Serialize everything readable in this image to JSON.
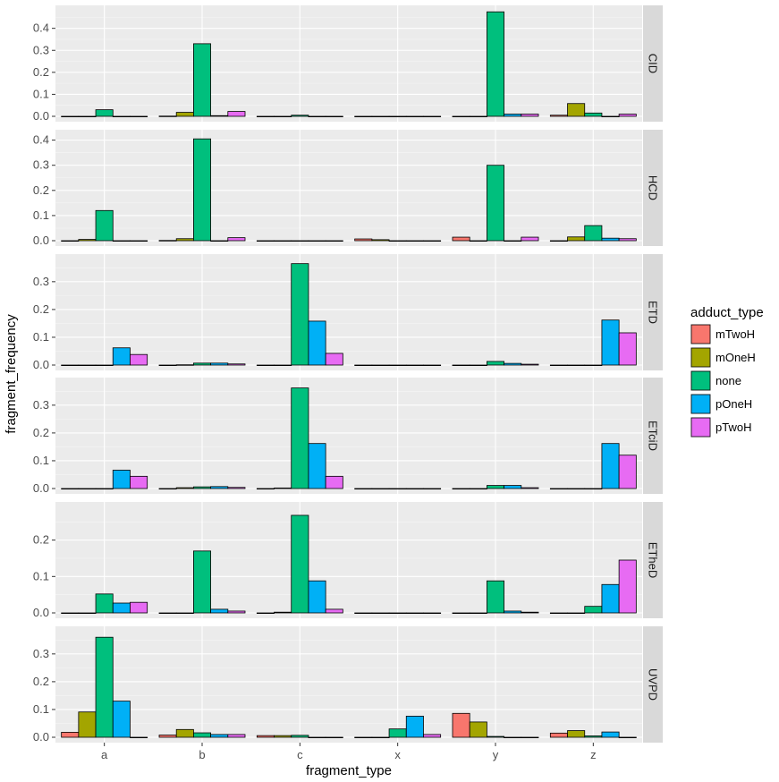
{
  "chart_data": {
    "type": "bar",
    "xlabel": "fragment_type",
    "ylabel": "fragment_frequency",
    "categories": [
      "a",
      "b",
      "c",
      "x",
      "y",
      "z"
    ],
    "legend": {
      "title": "adduct_type",
      "placement": "right",
      "entries": [
        {
          "name": "mTwoH",
          "color": "#F8766D"
        },
        {
          "name": "mOneH",
          "color": "#A3A500"
        },
        {
          "name": "none",
          "color": "#00BF7D"
        },
        {
          "name": "pOneH",
          "color": "#00B0F6"
        },
        {
          "name": "pTwoH",
          "color": "#E76BF3"
        }
      ]
    },
    "grid": true,
    "panels": [
      {
        "facet": "CID",
        "ylim": [
          0,
          0.48
        ],
        "yticks": [
          0.0,
          0.1,
          0.2,
          0.3,
          0.4
        ],
        "ytick_labels": [
          "0.0",
          "0.1",
          "0.2",
          "0.3",
          "0.4"
        ],
        "series": [
          {
            "name": "mTwoH",
            "values": [
              0,
              0.001,
              0,
              0,
              0,
              0.005
            ]
          },
          {
            "name": "mOneH",
            "values": [
              0,
              0.018,
              0,
              0,
              0,
              0.058
            ]
          },
          {
            "name": "none",
            "values": [
              0.03,
              0.33,
              0.005,
              0,
              0.475,
              0.015
            ]
          },
          {
            "name": "pOneH",
            "values": [
              0,
              0.003,
              0,
              0,
              0.01,
              0
            ]
          },
          {
            "name": "pTwoH",
            "values": [
              0,
              0.022,
              0,
              0,
              0.01,
              0.01
            ]
          }
        ]
      },
      {
        "facet": "HCD",
        "ylim": [
          0,
          0.42
        ],
        "yticks": [
          0.0,
          0.1,
          0.2,
          0.3,
          0.4
        ],
        "ytick_labels": [
          "0.0",
          "0.1",
          "0.2",
          "0.3",
          "0.4"
        ],
        "series": [
          {
            "name": "mTwoH",
            "values": [
              0,
              0.001,
              0,
              0.007,
              0.014,
              0
            ]
          },
          {
            "name": "mOneH",
            "values": [
              0.005,
              0.008,
              0,
              0.004,
              0,
              0.015
            ]
          },
          {
            "name": "none",
            "values": [
              0.12,
              0.405,
              0,
              0,
              0.3,
              0.06
            ]
          },
          {
            "name": "pOneH",
            "values": [
              0,
              0,
              0,
              0,
              0,
              0.01
            ]
          },
          {
            "name": "pTwoH",
            "values": [
              0,
              0.012,
              0,
              0,
              0.014,
              0.008
            ]
          }
        ]
      },
      {
        "facet": "ETD",
        "ylim": [
          0,
          0.38
        ],
        "yticks": [
          0.0,
          0.1,
          0.2,
          0.3
        ],
        "ytick_labels": [
          "0.0",
          "0.1",
          "0.2",
          "0.3"
        ],
        "series": [
          {
            "name": "mTwoH",
            "values": [
              0,
              0,
              0,
              0,
              0,
              0
            ]
          },
          {
            "name": "mOneH",
            "values": [
              0,
              0.001,
              0,
              0,
              0,
              0
            ]
          },
          {
            "name": "none",
            "values": [
              0,
              0.007,
              0.365,
              0,
              0.013,
              0
            ]
          },
          {
            "name": "pOneH",
            "values": [
              0.062,
              0.007,
              0.158,
              0,
              0.006,
              0.162
            ]
          },
          {
            "name": "pTwoH",
            "values": [
              0.038,
              0.004,
              0.042,
              0,
              0.003,
              0.116
            ]
          }
        ]
      },
      {
        "facet": "ETciD",
        "ylim": [
          0,
          0.38
        ],
        "yticks": [
          0.0,
          0.1,
          0.2,
          0.3
        ],
        "ytick_labels": [
          "0.0",
          "0.1",
          "0.2",
          "0.3"
        ],
        "series": [
          {
            "name": "mTwoH",
            "values": [
              0,
              0,
              0,
              0,
              0,
              0
            ]
          },
          {
            "name": "mOneH",
            "values": [
              0,
              0.003,
              0.002,
              0,
              0,
              0
            ]
          },
          {
            "name": "none",
            "values": [
              0,
              0.006,
              0.362,
              0,
              0.011,
              0
            ]
          },
          {
            "name": "pOneH",
            "values": [
              0.066,
              0.007,
              0.162,
              0,
              0.011,
              0.162
            ]
          },
          {
            "name": "pTwoH",
            "values": [
              0.044,
              0.004,
              0.044,
              0,
              0.003,
              0.12
            ]
          }
        ]
      },
      {
        "facet": "ETheD",
        "ylim": [
          0,
          0.29
        ],
        "yticks": [
          0.0,
          0.1,
          0.2
        ],
        "ytick_labels": [
          "0.0",
          "0.1",
          "0.2"
        ],
        "series": [
          {
            "name": "mTwoH",
            "values": [
              0,
              0,
              0,
              0,
              0,
              0
            ]
          },
          {
            "name": "mOneH",
            "values": [
              0,
              0,
              0.002,
              0,
              0,
              0
            ]
          },
          {
            "name": "none",
            "values": [
              0.052,
              0.17,
              0.268,
              0,
              0.088,
              0.018
            ]
          },
          {
            "name": "pOneH",
            "values": [
              0.027,
              0.01,
              0.088,
              0,
              0.005,
              0.078
            ]
          },
          {
            "name": "pTwoH",
            "values": [
              0.029,
              0.005,
              0.01,
              0,
              0.002,
              0.145
            ]
          }
        ]
      },
      {
        "facet": "UVPD",
        "ylim": [
          0,
          0.38
        ],
        "yticks": [
          0.0,
          0.1,
          0.2,
          0.3
        ],
        "ytick_labels": [
          "0.0",
          "0.1",
          "0.2",
          "0.3"
        ],
        "series": [
          {
            "name": "mTwoH",
            "values": [
              0.018,
              0.008,
              0.006,
              0,
              0.086,
              0.015
            ]
          },
          {
            "name": "mOneH",
            "values": [
              0.091,
              0.028,
              0.006,
              0,
              0.055,
              0.024
            ]
          },
          {
            "name": "none",
            "values": [
              0.36,
              0.016,
              0.007,
              0.03,
              0.003,
              0.005
            ]
          },
          {
            "name": "pOneH",
            "values": [
              0.13,
              0.01,
              0,
              0.076,
              0,
              0.019
            ]
          },
          {
            "name": "pTwoH",
            "values": [
              0,
              0.01,
              0,
              0.01,
              0,
              0
            ]
          }
        ]
      }
    ]
  }
}
